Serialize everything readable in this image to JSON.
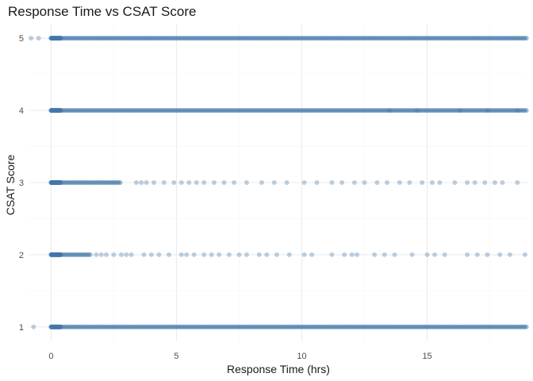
{
  "chart_data": {
    "type": "scatter",
    "title": "Response Time vs CSAT Score",
    "xlabel": "Response Time (hrs)",
    "ylabel": "CSAT Score",
    "xlim": [
      -0.9,
      19.0
    ],
    "ylim": [
      0.8,
      5.2
    ],
    "x_ticks": [
      "0",
      "5",
      "10",
      "15"
    ],
    "y_ticks": [
      "1",
      "2",
      "3",
      "4",
      "5"
    ],
    "grid": true,
    "legend": "none",
    "point_color": "#4477aa",
    "series": [
      {
        "csat": 5,
        "dense_x_range": [
          0,
          19.0
        ],
        "sparse_x": [
          -0.8,
          -0.5
        ]
      },
      {
        "csat": 4,
        "dense_x_range": [
          0,
          19.0
        ],
        "sparse_x": [
          13.5,
          14.6,
          16.3,
          17.4,
          18.6
        ]
      },
      {
        "csat": 3,
        "dense_x_range": [
          0,
          2.8
        ],
        "sparse_x": [
          3.4,
          3.6,
          3.8,
          4.1,
          4.5,
          4.9,
          5.2,
          5.5,
          5.8,
          6.1,
          6.5,
          6.9,
          7.3,
          7.8,
          8.4,
          8.9,
          9.4,
          10.1,
          10.6,
          11.2,
          11.6,
          12.1,
          12.5,
          13.0,
          13.4,
          13.9,
          14.3,
          14.8,
          15.2,
          15.5,
          16.1,
          16.6,
          16.9,
          17.3,
          17.7,
          18.0,
          18.6
        ]
      },
      {
        "csat": 2,
        "dense_x_range": [
          0,
          1.6
        ],
        "sparse_x": [
          1.8,
          2.0,
          2.2,
          2.5,
          2.8,
          3.0,
          3.2,
          3.7,
          4.0,
          4.3,
          4.7,
          5.2,
          5.4,
          5.7,
          6.1,
          6.4,
          6.7,
          7.1,
          7.5,
          7.8,
          8.3,
          8.6,
          9.0,
          9.5,
          10.1,
          10.4,
          11.2,
          11.7,
          12.0,
          12.2,
          12.9,
          13.3,
          13.7,
          14.4,
          15.0,
          15.3,
          15.7,
          16.6,
          17.0,
          17.4,
          17.9,
          18.3,
          18.9
        ]
      },
      {
        "csat": 1,
        "dense_x_range": [
          0,
          19.0
        ],
        "sparse_x": [
          -0.7
        ]
      }
    ]
  }
}
